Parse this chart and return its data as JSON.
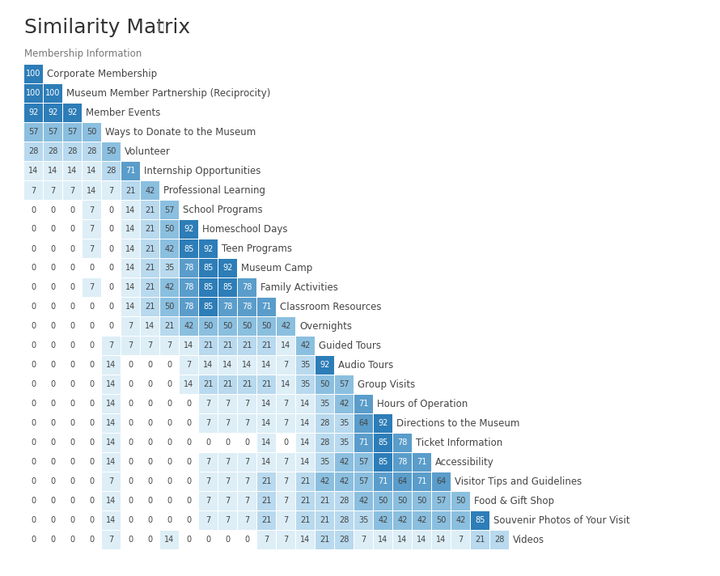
{
  "title": "Similarity Matrix",
  "title_icon": "ⓘ",
  "category_label": "Membership Information",
  "items": [
    "Corporate Membership",
    "Museum Member Partnership (Reciprocity)",
    "Member Events",
    "Ways to Donate to the Museum",
    "Volunteer",
    "Internship Opportunities",
    "Professional Learning",
    "School Programs",
    "Homeschool Days",
    "Teen Programs",
    "Museum Camp",
    "Family Activities",
    "Classroom Resources",
    "Overnights",
    "Guided Tours",
    "Audio Tours",
    "Group Visits",
    "Hours of Operation",
    "Directions to the Museum",
    "Ticket Information",
    "Accessibility",
    "Visitor Tips and Guidelines",
    "Food & Gift Shop",
    "Souvenir Photos of Your Visit",
    "Videos"
  ],
  "matrix": [
    [
      100
    ],
    [
      100,
      100
    ],
    [
      92,
      92,
      92
    ],
    [
      57,
      57,
      57,
      50
    ],
    [
      28,
      28,
      28,
      28,
      50
    ],
    [
      14,
      14,
      14,
      14,
      28,
      71
    ],
    [
      7,
      7,
      7,
      14,
      7,
      21,
      42
    ],
    [
      0,
      0,
      0,
      7,
      0,
      14,
      21,
      57
    ],
    [
      0,
      0,
      0,
      7,
      0,
      14,
      21,
      50,
      92
    ],
    [
      0,
      0,
      0,
      7,
      0,
      14,
      21,
      42,
      85,
      92
    ],
    [
      0,
      0,
      0,
      0,
      0,
      14,
      21,
      35,
      78,
      85,
      92
    ],
    [
      0,
      0,
      0,
      7,
      0,
      14,
      21,
      42,
      78,
      85,
      85,
      78
    ],
    [
      0,
      0,
      0,
      0,
      0,
      14,
      21,
      50,
      78,
      85,
      78,
      78,
      71
    ],
    [
      0,
      0,
      0,
      0,
      0,
      7,
      14,
      21,
      42,
      50,
      50,
      50,
      50,
      42
    ],
    [
      0,
      0,
      0,
      0,
      7,
      7,
      7,
      7,
      14,
      21,
      21,
      21,
      21,
      14,
      42
    ],
    [
      0,
      0,
      0,
      0,
      14,
      0,
      0,
      0,
      7,
      14,
      14,
      14,
      14,
      7,
      35,
      92
    ],
    [
      0,
      0,
      0,
      0,
      14,
      0,
      0,
      0,
      14,
      21,
      21,
      21,
      21,
      14,
      35,
      50,
      57
    ],
    [
      0,
      0,
      0,
      0,
      14,
      0,
      0,
      0,
      0,
      7,
      7,
      7,
      14,
      7,
      14,
      35,
      42,
      71
    ],
    [
      0,
      0,
      0,
      0,
      14,
      0,
      0,
      0,
      0,
      7,
      7,
      7,
      14,
      7,
      14,
      28,
      35,
      64,
      92
    ],
    [
      0,
      0,
      0,
      0,
      14,
      0,
      0,
      0,
      0,
      0,
      0,
      0,
      14,
      0,
      14,
      28,
      35,
      71,
      85,
      78
    ],
    [
      0,
      0,
      0,
      0,
      14,
      0,
      0,
      0,
      0,
      7,
      7,
      7,
      14,
      7,
      14,
      35,
      42,
      57,
      85,
      78,
      71
    ],
    [
      0,
      0,
      0,
      0,
      7,
      0,
      0,
      0,
      0,
      7,
      7,
      7,
      21,
      7,
      21,
      42,
      42,
      57,
      71,
      64,
      71,
      64
    ],
    [
      0,
      0,
      0,
      0,
      14,
      0,
      0,
      0,
      0,
      7,
      7,
      7,
      21,
      7,
      21,
      21,
      28,
      42,
      50,
      50,
      50,
      57,
      50
    ],
    [
      0,
      0,
      0,
      0,
      14,
      0,
      0,
      0,
      0,
      7,
      7,
      7,
      21,
      7,
      21,
      21,
      28,
      35,
      42,
      42,
      42,
      50,
      42,
      85
    ],
    [
      0,
      0,
      0,
      0,
      7,
      0,
      0,
      14,
      0,
      0,
      0,
      0,
      7,
      7,
      14,
      21,
      28,
      7,
      14,
      14,
      14,
      14,
      7,
      21,
      28
    ]
  ],
  "bg_color": "#ffffff",
  "text_color_dark": "#444444",
  "text_color_light": "#ffffff",
  "title_color": "#333333",
  "category_label_color": "#777777",
  "color_thresholds": [
    1,
    21,
    41,
    61,
    81
  ],
  "cell_colors": [
    "#ddeef7",
    "#b8d9ee",
    "#8bbfdf",
    "#5a9dcb",
    "#2d7db8"
  ],
  "zero_color": null
}
